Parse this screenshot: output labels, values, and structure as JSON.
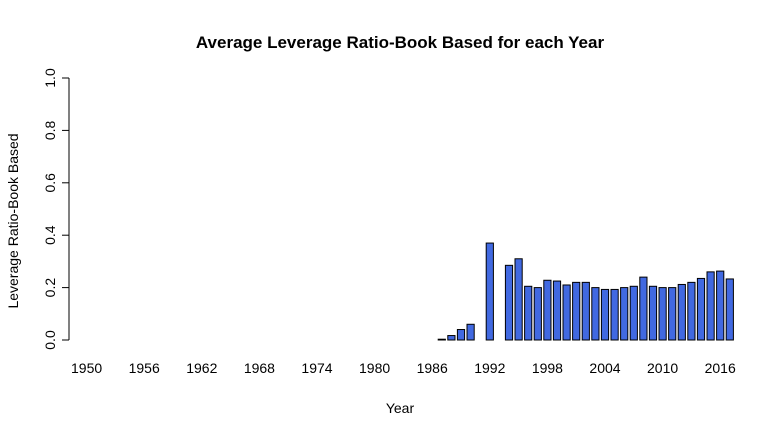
{
  "chart_data": {
    "type": "bar",
    "title": "Average Leverage Ratio-Book Based for each Year",
    "xlabel": "Year",
    "ylabel": "Leverage Ratio-Book Based",
    "ylim": [
      0,
      1
    ],
    "yticks": [
      "0.0",
      "0.2",
      "0.4",
      "0.6",
      "0.8",
      "1.0"
    ],
    "xticks": [
      "1950",
      "1956",
      "1962",
      "1968",
      "1974",
      "1980",
      "1986",
      "1992",
      "1998",
      "2004",
      "2010",
      "2016"
    ],
    "grid": false,
    "bar_color": "#4169E1",
    "categories": [
      "1950",
      "1951",
      "1952",
      "1953",
      "1954",
      "1955",
      "1956",
      "1957",
      "1958",
      "1959",
      "1960",
      "1961",
      "1962",
      "1963",
      "1964",
      "1965",
      "1966",
      "1967",
      "1968",
      "1969",
      "1970",
      "1971",
      "1972",
      "1973",
      "1974",
      "1975",
      "1976",
      "1977",
      "1978",
      "1979",
      "1980",
      "1981",
      "1982",
      "1983",
      "1984",
      "1985",
      "1986",
      "1987",
      "1988",
      "1989",
      "1990",
      "1991",
      "1992",
      "1993",
      "1994",
      "1995",
      "1996",
      "1997",
      "1998",
      "1999",
      "2000",
      "2001",
      "2002",
      "2003",
      "2004",
      "2005",
      "2006",
      "2007",
      "2008",
      "2009",
      "2010",
      "2011",
      "2012",
      "2013",
      "2014",
      "2015",
      "2016",
      "2017"
    ],
    "values": [
      0,
      0,
      0,
      0,
      0,
      0,
      0,
      0,
      0,
      0,
      0,
      0,
      0,
      0,
      0,
      0,
      0,
      0,
      0,
      0,
      0,
      0,
      0,
      0,
      0,
      0,
      0,
      0,
      0,
      0,
      0,
      0,
      0,
      0,
      0,
      0,
      0,
      0.003,
      0.017,
      0.04,
      0.06,
      0,
      0.37,
      0,
      0.285,
      0.31,
      0.205,
      0.2,
      0.228,
      0.225,
      0.21,
      0.22,
      0.22,
      0.2,
      0.193,
      0.193,
      0.2,
      0.205,
      0.24,
      0.205,
      0.2,
      0.2,
      0.212,
      0.22,
      0.235,
      0.26,
      0.263,
      0.233
    ]
  }
}
